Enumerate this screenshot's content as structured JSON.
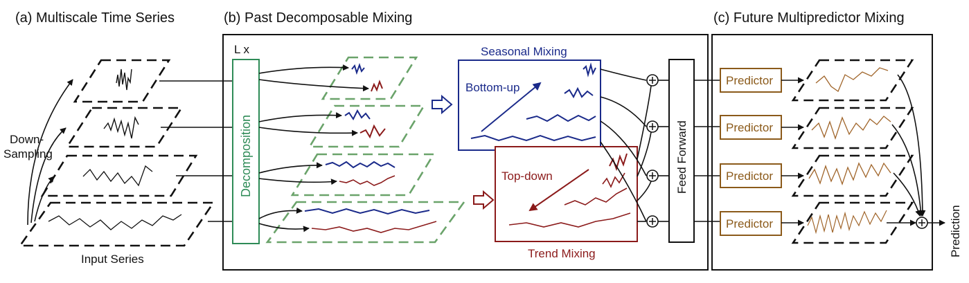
{
  "sections": {
    "a_title": "(a) Multiscale Time Series",
    "b_title": "(b) Past Decomposable Mixing",
    "c_title": "(c) Future Multipredictor Mixing"
  },
  "labels": {
    "down_sampling_1": "Down-",
    "down_sampling_2": "Sampling",
    "input_series": "Input Series",
    "layers": "L x",
    "decomposition": "Decomposition",
    "seasonal_mixing": "Seasonal Mixing",
    "bottom_up": "Bottom-up",
    "top_down": "Top-down",
    "trend_mixing": "Trend Mixing",
    "feed_forward": "Feed Forward",
    "predictor": "Predictor",
    "prediction": "Prediction"
  },
  "colors": {
    "seasonal": "#1a2a8a",
    "trend": "#8b1a1a",
    "decomposition": "#2e8b57",
    "predictor": "#8b5a1a"
  }
}
